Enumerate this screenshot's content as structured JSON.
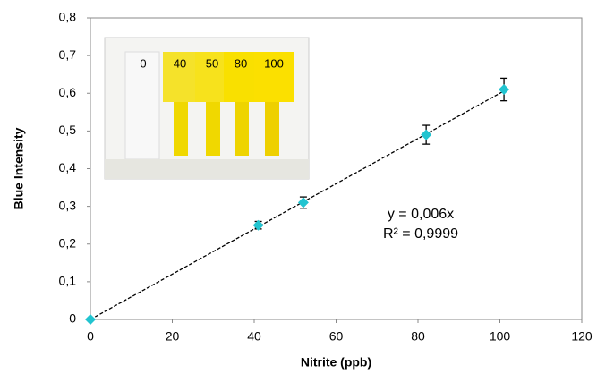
{
  "chart_data": {
    "type": "scatter",
    "x_label": "Nitrite (ppb)",
    "y_label": "Blue Intensity",
    "x": [
      0,
      41,
      52,
      82,
      101
    ],
    "values": [
      0,
      0.25,
      0.31,
      0.49,
      0.61
    ],
    "errors": [
      0,
      0.01,
      0.015,
      0.025,
      0.03
    ],
    "color": "#22c4d0",
    "xlim": [
      0,
      120
    ],
    "xticks": [
      0,
      20,
      40,
      60,
      80,
      100,
      120
    ],
    "ylim": [
      0,
      0.8
    ],
    "yticks": [
      0,
      {
        "value": 0.1,
        "label": "0,1"
      },
      {
        "value": 0.2,
        "label": "0,2"
      },
      {
        "value": 0.3,
        "label": "0,3"
      },
      {
        "value": 0.4,
        "label": "0,4"
      },
      {
        "value": 0.5,
        "label": "0,5"
      },
      {
        "value": 0.6,
        "label": "0,6"
      },
      {
        "value": 0.7,
        "label": "0,7"
      },
      {
        "value": 0.8,
        "label": "0,8"
      }
    ],
    "trendline": {
      "slope": 0.006,
      "equation": "y = 0,006x",
      "r2": "R² = 0,9999"
    },
    "inset_labels": [
      "0",
      "40",
      "50",
      "80",
      "100"
    ]
  }
}
